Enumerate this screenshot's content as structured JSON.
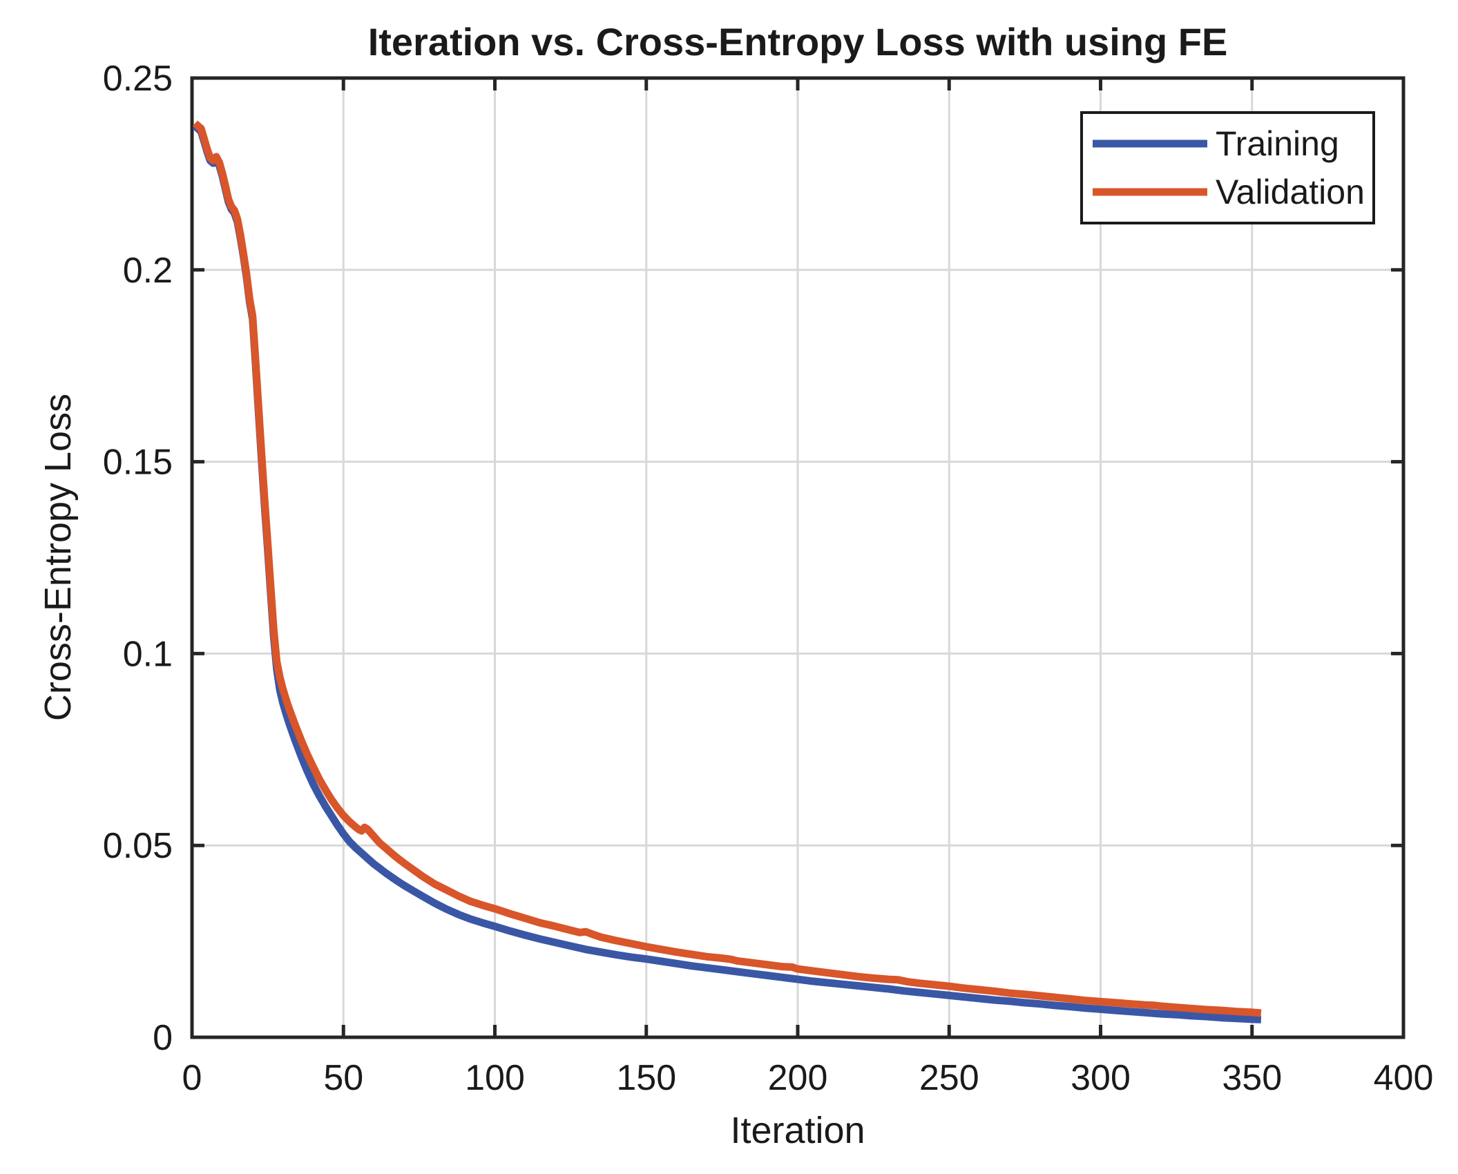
{
  "figure": {
    "background": "#ffffff"
  },
  "chart_data": {
    "type": "line",
    "title": "Iteration vs. Cross-Entropy Loss with using FE",
    "xlabel": "Iteration",
    "ylabel": "Cross-Entropy Loss",
    "xlim": [
      0,
      400
    ],
    "ylim": [
      0,
      0.25
    ],
    "grid": true,
    "x_ticks": {
      "values": [
        0,
        50,
        100,
        150,
        200,
        250,
        300,
        350,
        400
      ],
      "labels": [
        "0",
        "50",
        "100",
        "150",
        "200",
        "250",
        "300",
        "350",
        "400"
      ]
    },
    "y_ticks": {
      "values": [
        0,
        0.05,
        0.1,
        0.15,
        0.2,
        0.25
      ],
      "labels": [
        "0",
        "0.05",
        "0.1",
        "0.15",
        "0.2",
        "0.25"
      ]
    },
    "legend": {
      "position": "northeast",
      "entries": [
        "Training",
        "Validation"
      ]
    },
    "colors": {
      "training": "#3A57A6",
      "validation": "#D8562A",
      "grid": "#D8D8D8",
      "axis": "#262626",
      "text": "#1A1A1A",
      "legend_border": "#1A1A1A",
      "legend_fill": "#FFFFFF"
    },
    "series": [
      {
        "name": "Training",
        "color_key": "training",
        "points": [
          [
            1,
            0.2375
          ],
          [
            2,
            0.2368
          ],
          [
            3,
            0.236
          ],
          [
            4,
            0.2335
          ],
          [
            5,
            0.2308
          ],
          [
            6,
            0.2285
          ],
          [
            7,
            0.2278
          ],
          [
            8,
            0.2288
          ],
          [
            9,
            0.2272
          ],
          [
            10,
            0.2245
          ],
          [
            11,
            0.2212
          ],
          [
            12,
            0.2178
          ],
          [
            13,
            0.2158
          ],
          [
            14,
            0.2148
          ],
          [
            15,
            0.2125
          ],
          [
            16,
            0.2082
          ],
          [
            17,
            0.2035
          ],
          [
            18,
            0.1982
          ],
          [
            19,
            0.1918
          ],
          [
            20,
            0.1872
          ],
          [
            21,
            0.1752
          ],
          [
            22,
            0.1625
          ],
          [
            23,
            0.15
          ],
          [
            24,
            0.1382
          ],
          [
            25,
            0.1272
          ],
          [
            26,
            0.1155
          ],
          [
            27,
            0.1042
          ],
          [
            28,
            0.0958
          ],
          [
            29,
            0.0905
          ],
          [
            30,
            0.0872
          ],
          [
            31,
            0.0845
          ],
          [
            32,
            0.082
          ],
          [
            34,
            0.0775
          ],
          [
            36,
            0.0733
          ],
          [
            38,
            0.0695
          ],
          [
            40,
            0.066
          ],
          [
            42,
            0.063
          ],
          [
            44,
            0.0603
          ],
          [
            46,
            0.0578
          ],
          [
            48,
            0.0553
          ],
          [
            50,
            0.053
          ],
          [
            52,
            0.051
          ],
          [
            54,
            0.0494
          ],
          [
            56,
            0.048
          ],
          [
            58,
            0.0466
          ],
          [
            60,
            0.0452
          ],
          [
            62,
            0.044
          ],
          [
            64,
            0.0428
          ],
          [
            66,
            0.0417
          ],
          [
            68,
            0.0406
          ],
          [
            70,
            0.0396
          ],
          [
            73,
            0.0382
          ],
          [
            76,
            0.0368
          ],
          [
            80,
            0.035
          ],
          [
            84,
            0.0334
          ],
          [
            88,
            0.032
          ],
          [
            92,
            0.0308
          ],
          [
            96,
            0.0298
          ],
          [
            100,
            0.0289
          ],
          [
            105,
            0.0277
          ],
          [
            110,
            0.0266
          ],
          [
            115,
            0.0256
          ],
          [
            120,
            0.0247
          ],
          [
            125,
            0.0238
          ],
          [
            130,
            0.0229
          ],
          [
            135,
            0.0222
          ],
          [
            140,
            0.0215
          ],
          [
            145,
            0.0209
          ],
          [
            150,
            0.0204
          ],
          [
            155,
            0.0198
          ],
          [
            160,
            0.0192
          ],
          [
            165,
            0.0186
          ],
          [
            170,
            0.0181
          ],
          [
            175,
            0.0176
          ],
          [
            180,
            0.0171
          ],
          [
            185,
            0.0166
          ],
          [
            190,
            0.0161
          ],
          [
            195,
            0.0156
          ],
          [
            200,
            0.0151
          ],
          [
            205,
            0.0146
          ],
          [
            210,
            0.0142
          ],
          [
            215,
            0.0138
          ],
          [
            220,
            0.0134
          ],
          [
            225,
            0.013
          ],
          [
            230,
            0.0126
          ],
          [
            235,
            0.0121
          ],
          [
            240,
            0.0117
          ],
          [
            245,
            0.0113
          ],
          [
            250,
            0.0109
          ],
          [
            255,
            0.0105
          ],
          [
            260,
            0.0101
          ],
          [
            265,
            0.0097
          ],
          [
            270,
            0.0094
          ],
          [
            275,
            0.009
          ],
          [
            280,
            0.0087
          ],
          [
            285,
            0.0083
          ],
          [
            290,
            0.008
          ],
          [
            295,
            0.0076
          ],
          [
            300,
            0.0073
          ],
          [
            305,
            0.007
          ],
          [
            310,
            0.0067
          ],
          [
            315,
            0.0064
          ],
          [
            320,
            0.0061
          ],
          [
            325,
            0.0059
          ],
          [
            330,
            0.0056
          ],
          [
            335,
            0.0054
          ],
          [
            340,
            0.0051
          ],
          [
            345,
            0.0049
          ],
          [
            350,
            0.0047
          ],
          [
            353,
            0.0046
          ]
        ]
      },
      {
        "name": "Validation",
        "color_key": "validation",
        "points": [
          [
            1,
            0.2382
          ],
          [
            2,
            0.2375
          ],
          [
            3,
            0.2368
          ],
          [
            4,
            0.2342
          ],
          [
            5,
            0.2315
          ],
          [
            6,
            0.2292
          ],
          [
            7,
            0.2285
          ],
          [
            8,
            0.2295
          ],
          [
            9,
            0.228
          ],
          [
            10,
            0.2252
          ],
          [
            11,
            0.222
          ],
          [
            12,
            0.2185
          ],
          [
            13,
            0.2165
          ],
          [
            14,
            0.2155
          ],
          [
            15,
            0.2132
          ],
          [
            16,
            0.209
          ],
          [
            17,
            0.2042
          ],
          [
            18,
            0.199
          ],
          [
            19,
            0.1925
          ],
          [
            20,
            0.188
          ],
          [
            21,
            0.1762
          ],
          [
            22,
            0.1638
          ],
          [
            23,
            0.1515
          ],
          [
            24,
            0.1398
          ],
          [
            25,
            0.1288
          ],
          [
            26,
            0.1172
          ],
          [
            27,
            0.106
          ],
          [
            28,
            0.0978
          ],
          [
            29,
            0.0938
          ],
          [
            30,
            0.0908
          ],
          [
            31,
            0.0882
          ],
          [
            32,
            0.0858
          ],
          [
            34,
            0.0815
          ],
          [
            36,
            0.0775
          ],
          [
            38,
            0.0738
          ],
          [
            40,
            0.0705
          ],
          [
            42,
            0.0673
          ],
          [
            44,
            0.0646
          ],
          [
            46,
            0.062
          ],
          [
            48,
            0.0598
          ],
          [
            50,
            0.0578
          ],
          [
            52,
            0.0562
          ],
          [
            54,
            0.0548
          ],
          [
            55,
            0.0542
          ],
          [
            56,
            0.0538
          ],
          [
            57,
            0.0547
          ],
          [
            58,
            0.0542
          ],
          [
            60,
            0.0524
          ],
          [
            62,
            0.0506
          ],
          [
            64,
            0.0493
          ],
          [
            66,
            0.0479
          ],
          [
            68,
            0.0466
          ],
          [
            70,
            0.0454
          ],
          [
            73,
            0.0437
          ],
          [
            76,
            0.042
          ],
          [
            80,
            0.04
          ],
          [
            84,
            0.0384
          ],
          [
            88,
            0.0368
          ],
          [
            92,
            0.0354
          ],
          [
            96,
            0.0344
          ],
          [
            100,
            0.0335
          ],
          [
            105,
            0.0322
          ],
          [
            110,
            0.031
          ],
          [
            115,
            0.0298
          ],
          [
            120,
            0.0289
          ],
          [
            125,
            0.0279
          ],
          [
            128,
            0.0273
          ],
          [
            130,
            0.0275
          ],
          [
            132,
            0.0269
          ],
          [
            135,
            0.0261
          ],
          [
            140,
            0.0252
          ],
          [
            145,
            0.0244
          ],
          [
            150,
            0.0236
          ],
          [
            155,
            0.0229
          ],
          [
            160,
            0.0222
          ],
          [
            165,
            0.0216
          ],
          [
            170,
            0.021
          ],
          [
            175,
            0.0206
          ],
          [
            178,
            0.0203
          ],
          [
            180,
            0.0199
          ],
          [
            185,
            0.0194
          ],
          [
            190,
            0.0189
          ],
          [
            195,
            0.0184
          ],
          [
            198,
            0.0183
          ],
          [
            200,
            0.0178
          ],
          [
            205,
            0.0173
          ],
          [
            210,
            0.0168
          ],
          [
            215,
            0.0163
          ],
          [
            220,
            0.0158
          ],
          [
            225,
            0.0154
          ],
          [
            230,
            0.0151
          ],
          [
            233,
            0.015
          ],
          [
            236,
            0.0145
          ],
          [
            240,
            0.0141
          ],
          [
            245,
            0.0137
          ],
          [
            250,
            0.0133
          ],
          [
            255,
            0.0128
          ],
          [
            260,
            0.0124
          ],
          [
            265,
            0.012
          ],
          [
            270,
            0.0115
          ],
          [
            275,
            0.0112
          ],
          [
            280,
            0.0108
          ],
          [
            285,
            0.0104
          ],
          [
            290,
            0.01
          ],
          [
            295,
            0.0096
          ],
          [
            300,
            0.0093
          ],
          [
            305,
            0.009
          ],
          [
            307,
            0.0089
          ],
          [
            310,
            0.0087
          ],
          [
            315,
            0.0084
          ],
          [
            318,
            0.0083
          ],
          [
            320,
            0.0081
          ],
          [
            325,
            0.0078
          ],
          [
            330,
            0.0075
          ],
          [
            335,
            0.0072
          ],
          [
            340,
            0.007
          ],
          [
            345,
            0.0067
          ],
          [
            350,
            0.0065
          ],
          [
            353,
            0.0063
          ]
        ]
      }
    ]
  }
}
